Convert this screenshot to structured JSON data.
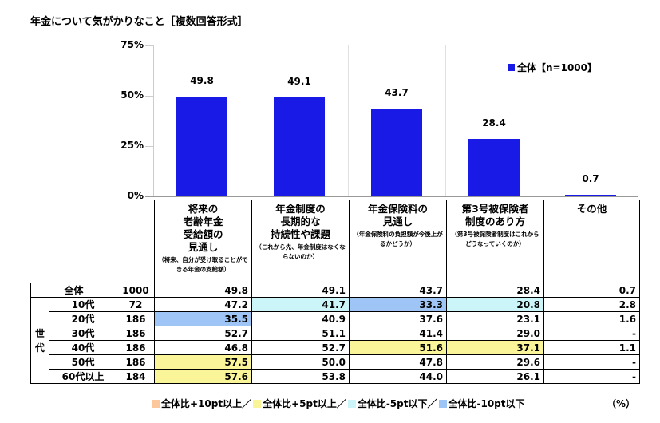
{
  "title": "年金について気がかりなこと［複数回答形式］",
  "chart_data": {
    "type": "bar",
    "title": "年金について気がかりなこと［複数回答形式］",
    "categories": [
      "将来の老齢年金受給額の見通し",
      "年金制度の長期的な持続性や課題",
      "年金保険料の見通し",
      "第3号被保険者制度のあり方",
      "その他"
    ],
    "series": [
      {
        "name": "全体【n=1000】",
        "values": [
          49.8,
          49.1,
          43.7,
          28.4,
          0.7
        ]
      }
    ],
    "value_labels": [
      "49.8",
      "49.1",
      "43.7",
      "28.4",
      "0.7"
    ],
    "ylim": [
      0,
      75
    ],
    "yticks": [
      "0%",
      "25%",
      "50%",
      "75%"
    ],
    "ytick_values": [
      0,
      25,
      50,
      75
    ],
    "legend": "全体【n=1000】",
    "legend_position": "top-right",
    "bar_color": "#1a1ae6"
  },
  "headers": [
    {
      "lines": [
        "将来の",
        "老齢年金",
        "受給額の",
        "見通し"
      ],
      "note": "（将来、自分が受け取ることができる年金の支給額）"
    },
    {
      "lines": [
        "年金制度の",
        "長期的な",
        "持続性や課題"
      ],
      "note": "（これから先、年金制度はなくならないのか）"
    },
    {
      "lines": [
        "年金保険料の",
        "見通し"
      ],
      "note": "（年金保険料の負担額が今後上がるかどうか）"
    },
    {
      "lines": [
        "第3号被保険者",
        "制度のあり方"
      ],
      "note": "（第3号被保険者制度はこれからどうなっていくのか）"
    },
    {
      "lines": [
        "その他"
      ],
      "note": ""
    }
  ],
  "group_label": "世代",
  "rows": [
    {
      "label": "全体",
      "n": "1000",
      "values": [
        "49.8",
        "49.1",
        "43.7",
        "28.4",
        "0.7"
      ],
      "hl": [
        "",
        "",
        "",
        "",
        ""
      ]
    },
    {
      "label": "10代",
      "n": "72",
      "values": [
        "47.2",
        "41.7",
        "33.3",
        "20.8",
        "2.8"
      ],
      "hl": [
        "",
        "c",
        "b",
        "c",
        ""
      ]
    },
    {
      "label": "20代",
      "n": "186",
      "values": [
        "35.5",
        "40.9",
        "37.6",
        "23.1",
        "1.6"
      ],
      "hl": [
        "b",
        "",
        "",
        "",
        ""
      ]
    },
    {
      "label": "30代",
      "n": "186",
      "values": [
        "52.7",
        "51.1",
        "41.4",
        "29.0",
        "-"
      ],
      "hl": [
        "",
        "",
        "",
        "",
        ""
      ]
    },
    {
      "label": "40代",
      "n": "186",
      "values": [
        "46.8",
        "52.7",
        "51.6",
        "37.1",
        "1.1"
      ],
      "hl": [
        "",
        "",
        "y",
        "y",
        ""
      ]
    },
    {
      "label": "50代",
      "n": "186",
      "values": [
        "57.5",
        "50.0",
        "47.8",
        "29.6",
        "-"
      ],
      "hl": [
        "y",
        "",
        "",
        "",
        ""
      ]
    },
    {
      "label": "60代以上",
      "n": "184",
      "values": [
        "57.6",
        "53.8",
        "44.0",
        "26.1",
        "-"
      ],
      "hl": [
        "y",
        "",
        "",
        "",
        ""
      ]
    }
  ],
  "footnote": [
    {
      "label": "全体比+10pt以上／",
      "color": "#fcc89b"
    },
    {
      "label": "全体比+5pt以上／",
      "color": "#fbf59a"
    },
    {
      "label": "全体比-5pt以下／",
      "color": "#ccf5fa"
    },
    {
      "label": "全体比-10pt以下",
      "color": "#9ec5f5"
    }
  ],
  "unit": "（%）"
}
